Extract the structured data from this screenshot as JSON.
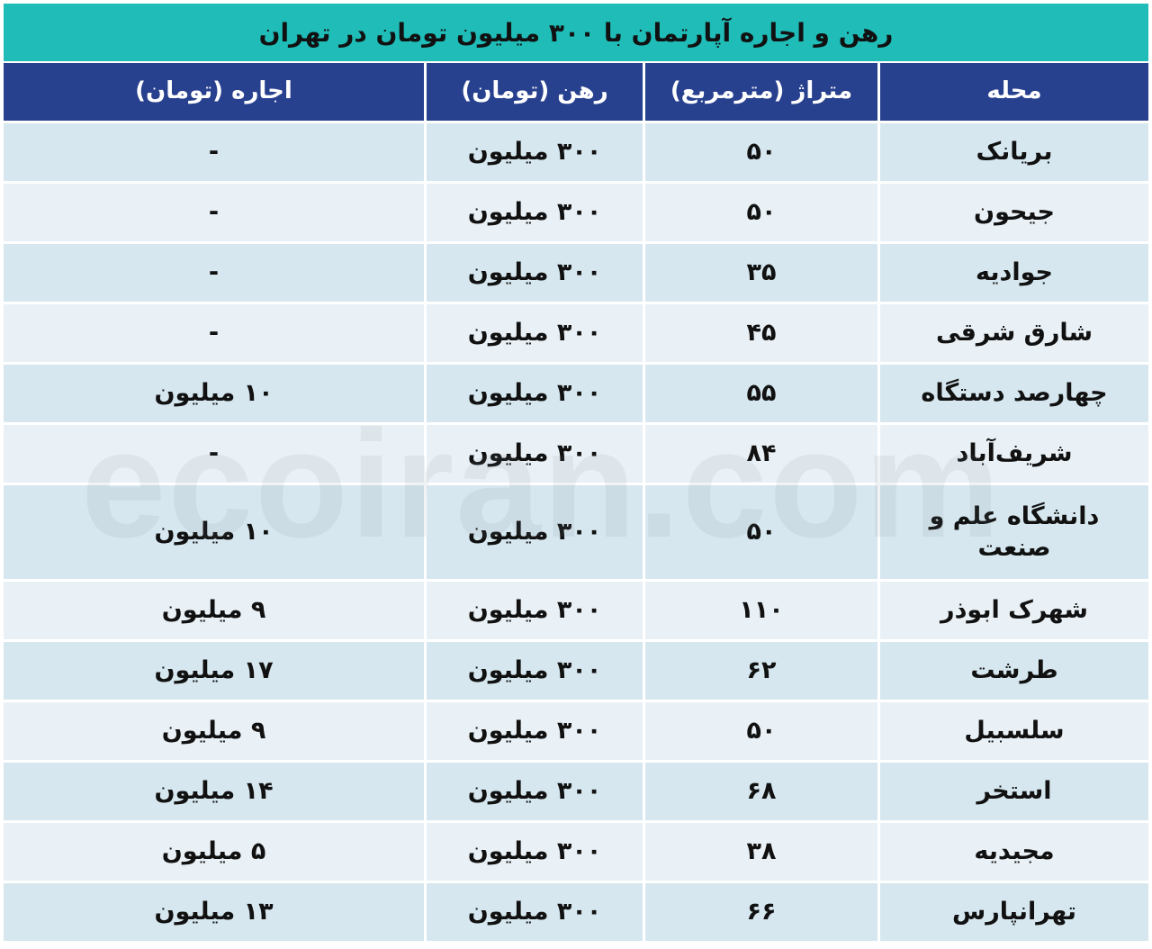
{
  "title": "رهن و اجاره آپارتمان با ۳۰۰ میلیون تومان در تهران",
  "headers": [
    "محله",
    "متراژ (مترمربع)",
    "رهن (تومان)",
    "اجاره (تومان)"
  ],
  "rows": [
    [
      "بریانک",
      "۵۰",
      "۳۰۰ میلیون",
      "-"
    ],
    [
      "جیحون",
      "۵۰",
      "۳۰۰ میلیون",
      "-"
    ],
    [
      "جوادیه",
      "۳۵",
      "۳۰۰ میلیون",
      "-"
    ],
    [
      "شارق شرقی",
      "۴۵",
      "۳۰۰ میلیون",
      "-"
    ],
    [
      "چهارصد دستگاه",
      "۵۵",
      "۳۰۰ میلیون",
      "۱۰ میلیون"
    ],
    [
      "شریف‌آباد",
      "۸۴",
      "۳۰۰ میلیون",
      "-"
    ],
    [
      "دانشگاه علم و صنعت",
      "۵۰",
      "۳۰۰ میلیون",
      "۱۰ میلیون"
    ],
    [
      "شهرک ابوذر",
      "۱۱۰",
      "۳۰۰ میلیون",
      "۹ میلیون"
    ],
    [
      "طرشت",
      "۶۲",
      "۳۰۰ میلیون",
      "۱۷ میلیون"
    ],
    [
      "سلسبیل",
      "۵۰",
      "۳۰۰ میلیون",
      "۹ میلیون"
    ],
    [
      "استخر",
      "۶۸",
      "۳۰۰ میلیون",
      "۱۴ میلیون"
    ],
    [
      "مجیدیه",
      "۳۸",
      "۳۰۰ میلیون",
      "۵ میلیون"
    ],
    [
      "تهرانپارس",
      "۶۶",
      "۳۰۰ میلیون",
      "۱۳ میلیون"
    ]
  ],
  "watermark": "ecoiran.com",
  "colors": {
    "title_bg": "#1fbcb8",
    "header_bg": "#28418f",
    "row_odd": "#d6e7ef",
    "row_even": "#e9f1f6"
  }
}
